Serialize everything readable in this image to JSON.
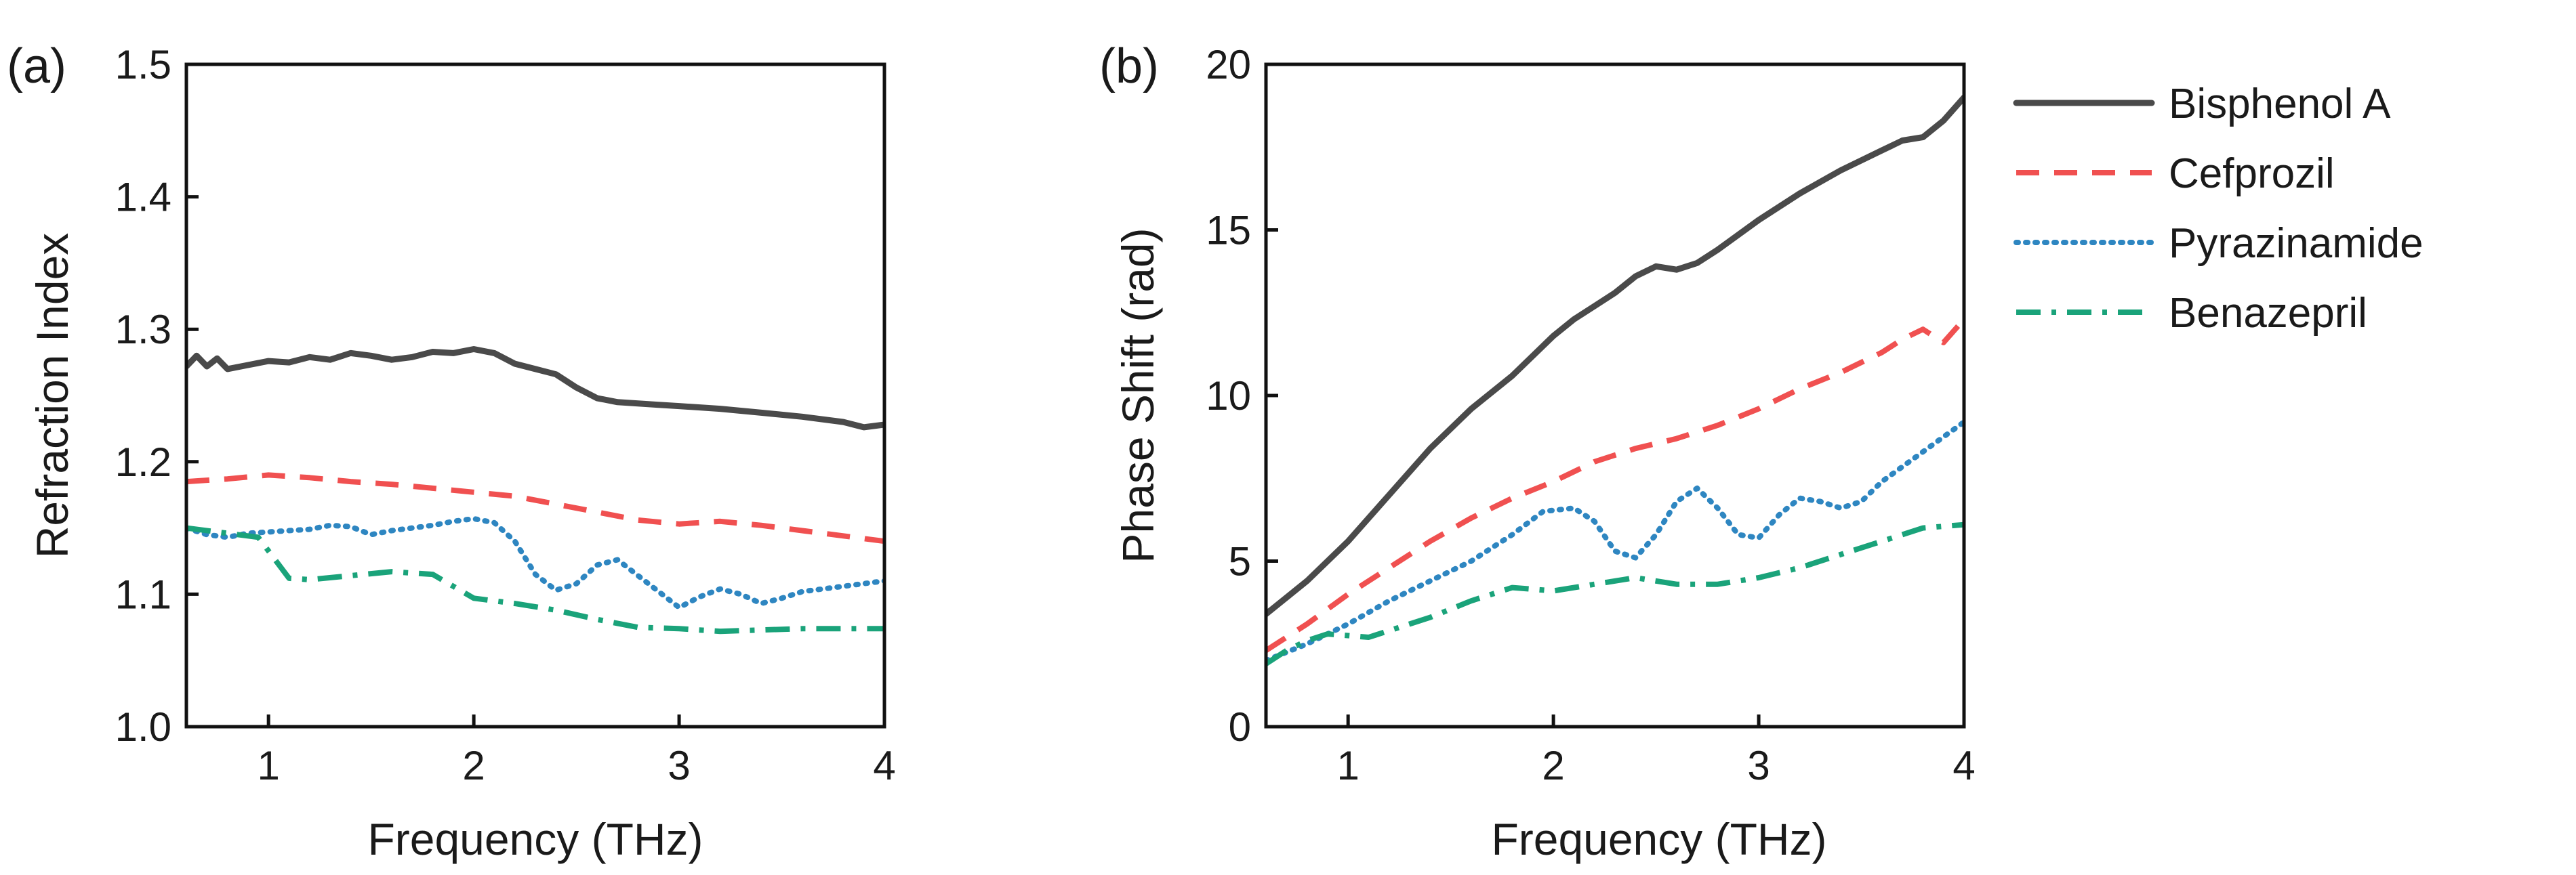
{
  "chart_data": [
    {
      "type": "line",
      "panel_label": "(a)",
      "xlabel": "Frequency (THz)",
      "ylabel": "Refraction Index",
      "xlim": [
        0.6,
        4.0
      ],
      "ylim": [
        1.0,
        1.5
      ],
      "xticks": [
        1,
        2,
        3,
        4
      ],
      "xtick_labels": [
        "1",
        "2",
        "3",
        "4"
      ],
      "yticks": [
        1.0,
        1.1,
        1.2,
        1.3,
        1.4,
        1.5
      ],
      "ytick_labels": [
        "1.0",
        "1.1",
        "1.2",
        "1.3",
        "1.4",
        "1.5"
      ],
      "grid": false,
      "series": [
        {
          "name": "Bisphenol A",
          "x": [
            0.6,
            0.65,
            0.7,
            0.75,
            0.8,
            0.9,
            1.0,
            1.1,
            1.2,
            1.3,
            1.4,
            1.5,
            1.6,
            1.7,
            1.8,
            1.9,
            2.0,
            2.1,
            2.2,
            2.3,
            2.4,
            2.5,
            2.6,
            2.7,
            2.8,
            2.9,
            3.0,
            3.2,
            3.4,
            3.6,
            3.8,
            3.9,
            4.0
          ],
          "y": [
            1.272,
            1.28,
            1.272,
            1.278,
            1.27,
            1.273,
            1.276,
            1.275,
            1.279,
            1.277,
            1.282,
            1.28,
            1.277,
            1.279,
            1.283,
            1.282,
            1.285,
            1.282,
            1.274,
            1.27,
            1.266,
            1.256,
            1.248,
            1.245,
            1.244,
            1.243,
            1.242,
            1.24,
            1.237,
            1.234,
            1.23,
            1.226,
            1.228
          ]
        },
        {
          "name": "Cefprozil",
          "x": [
            0.6,
            0.8,
            1.0,
            1.2,
            1.4,
            1.6,
            1.8,
            2.0,
            2.2,
            2.4,
            2.6,
            2.8,
            3.0,
            3.2,
            3.4,
            3.6,
            3.8,
            4.0
          ],
          "y": [
            1.185,
            1.187,
            1.19,
            1.188,
            1.185,
            1.183,
            1.18,
            1.177,
            1.174,
            1.168,
            1.162,
            1.156,
            1.153,
            1.155,
            1.152,
            1.148,
            1.144,
            1.14
          ]
        },
        {
          "name": "Pyrazinamide",
          "x": [
            0.6,
            0.7,
            0.8,
            0.9,
            1.0,
            1.1,
            1.2,
            1.3,
            1.4,
            1.5,
            1.6,
            1.7,
            1.8,
            1.9,
            2.0,
            2.1,
            2.2,
            2.3,
            2.4,
            2.5,
            2.6,
            2.7,
            2.8,
            2.9,
            3.0,
            3.1,
            3.2,
            3.3,
            3.4,
            3.5,
            3.6,
            3.8,
            4.0
          ],
          "y": [
            1.15,
            1.145,
            1.143,
            1.146,
            1.147,
            1.148,
            1.149,
            1.152,
            1.151,
            1.145,
            1.148,
            1.15,
            1.152,
            1.155,
            1.157,
            1.154,
            1.14,
            1.115,
            1.103,
            1.108,
            1.122,
            1.126,
            1.114,
            1.102,
            1.09,
            1.098,
            1.104,
            1.1,
            1.093,
            1.097,
            1.102,
            1.106,
            1.11
          ]
        },
        {
          "name": "Benazepril",
          "x": [
            0.6,
            0.8,
            0.95,
            1.1,
            1.2,
            1.4,
            1.6,
            1.8,
            2.0,
            2.2,
            2.4,
            2.6,
            2.8,
            3.0,
            3.2,
            3.4,
            3.6,
            3.8,
            4.0
          ],
          "y": [
            1.15,
            1.146,
            1.143,
            1.112,
            1.111,
            1.114,
            1.117,
            1.115,
            1.097,
            1.093,
            1.088,
            1.081,
            1.075,
            1.074,
            1.072,
            1.073,
            1.074,
            1.074,
            1.074
          ]
        }
      ]
    },
    {
      "type": "line",
      "panel_label": "(b)",
      "xlabel": "Frequency (THz)",
      "ylabel": "Phase Shift (rad)",
      "xlim": [
        0.6,
        4.0
      ],
      "ylim": [
        0,
        20
      ],
      "xticks": [
        1,
        2,
        3,
        4
      ],
      "xtick_labels": [
        "1",
        "2",
        "3",
        "4"
      ],
      "yticks": [
        0,
        5,
        10,
        15,
        20
      ],
      "ytick_labels": [
        "0",
        "5",
        "10",
        "15",
        "20"
      ],
      "grid": false,
      "series": [
        {
          "name": "Bisphenol A",
          "x": [
            0.6,
            0.8,
            1.0,
            1.2,
            1.4,
            1.6,
            1.8,
            2.0,
            2.1,
            2.2,
            2.3,
            2.4,
            2.5,
            2.6,
            2.7,
            2.8,
            3.0,
            3.2,
            3.4,
            3.6,
            3.7,
            3.8,
            3.9,
            4.0
          ],
          "y": [
            3.4,
            4.4,
            5.6,
            7.0,
            8.4,
            9.6,
            10.6,
            11.8,
            12.3,
            12.7,
            13.1,
            13.6,
            13.9,
            13.8,
            14.0,
            14.4,
            15.3,
            16.1,
            16.8,
            17.4,
            17.7,
            17.8,
            18.3,
            19.0
          ]
        },
        {
          "name": "Cefprozil",
          "x": [
            0.6,
            0.8,
            1.0,
            1.2,
            1.4,
            1.6,
            1.8,
            2.0,
            2.2,
            2.4,
            2.6,
            2.8,
            3.0,
            3.2,
            3.4,
            3.6,
            3.7,
            3.8,
            3.9,
            4.0
          ],
          "y": [
            2.3,
            3.1,
            4.0,
            4.8,
            5.6,
            6.3,
            6.9,
            7.4,
            8.0,
            8.4,
            8.7,
            9.1,
            9.6,
            10.2,
            10.7,
            11.3,
            11.7,
            12.0,
            11.6,
            12.3
          ]
        },
        {
          "name": "Pyrazinamide",
          "x": [
            0.6,
            0.8,
            1.0,
            1.2,
            1.4,
            1.6,
            1.8,
            1.95,
            2.1,
            2.2,
            2.3,
            2.4,
            2.5,
            2.6,
            2.7,
            2.8,
            2.9,
            3.0,
            3.1,
            3.2,
            3.3,
            3.4,
            3.5,
            3.6,
            3.8,
            4.0
          ],
          "y": [
            2.0,
            2.5,
            3.1,
            3.8,
            4.4,
            5.0,
            5.8,
            6.5,
            6.6,
            6.2,
            5.3,
            5.1,
            5.8,
            6.8,
            7.2,
            6.6,
            5.8,
            5.7,
            6.4,
            6.9,
            6.8,
            6.6,
            6.8,
            7.4,
            8.3,
            9.2
          ]
        },
        {
          "name": "Benazepril",
          "x": [
            0.6,
            0.7,
            0.8,
            0.9,
            1.0,
            1.1,
            1.2,
            1.4,
            1.6,
            1.8,
            2.0,
            2.2,
            2.4,
            2.6,
            2.8,
            3.0,
            3.2,
            3.4,
            3.6,
            3.8,
            4.0
          ],
          "y": [
            1.9,
            2.3,
            2.6,
            2.8,
            2.75,
            2.7,
            2.9,
            3.3,
            3.8,
            4.2,
            4.1,
            4.3,
            4.5,
            4.3,
            4.3,
            4.5,
            4.8,
            5.2,
            5.6,
            6.0,
            6.1
          ]
        }
      ]
    }
  ],
  "legend": {
    "placement": "right",
    "entries": [
      {
        "label": "Bisphenol A",
        "color": "#4a4a4a",
        "style": "solid"
      },
      {
        "label": "Cefprozil",
        "color": "#f05050",
        "style": "dashed"
      },
      {
        "label": "Pyrazinamide",
        "color": "#2e86c1",
        "style": "dotted"
      },
      {
        "label": "Benazepril",
        "color": "#1aa37a",
        "style": "dashdot"
      }
    ]
  }
}
